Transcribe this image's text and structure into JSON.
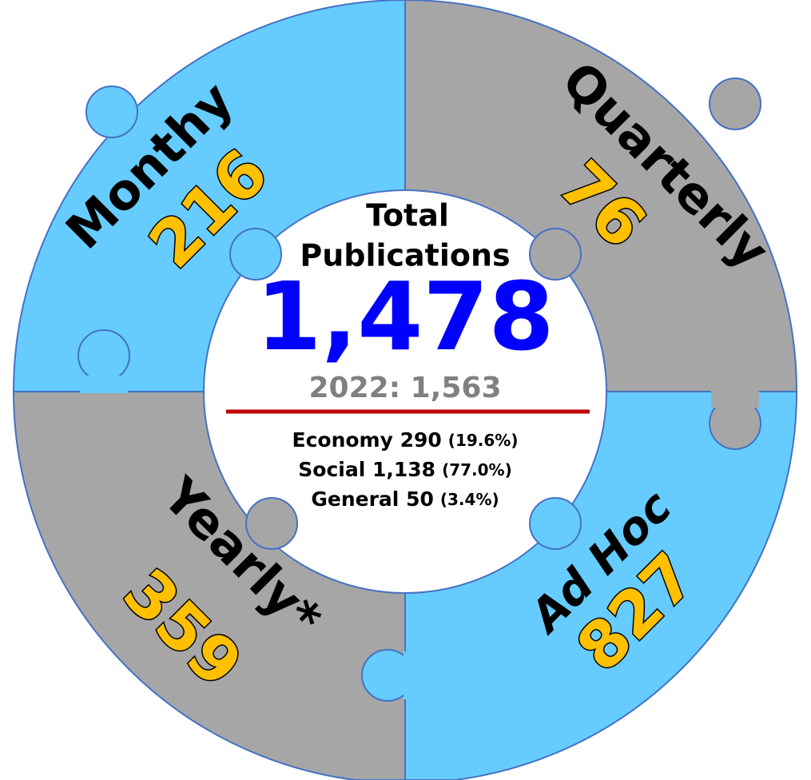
{
  "center": {
    "title_line1": "Total",
    "title_line2": "Publications",
    "total": "1,478",
    "previous": "2022: 1,563",
    "breakdown": [
      {
        "label": "Economy 290",
        "share": "(19.6%)"
      },
      {
        "label": "Social 1,138",
        "share": "(77.0%)"
      },
      {
        "label": "General 50",
        "share": "(3.4%)"
      }
    ]
  },
  "segments": [
    {
      "label": "Monthy",
      "value": "216"
    },
    {
      "label": "Quarterly",
      "value": "76"
    },
    {
      "label": "Yearly*",
      "value": "359"
    },
    {
      "label": "Ad Hoc",
      "value": "827"
    }
  ]
}
